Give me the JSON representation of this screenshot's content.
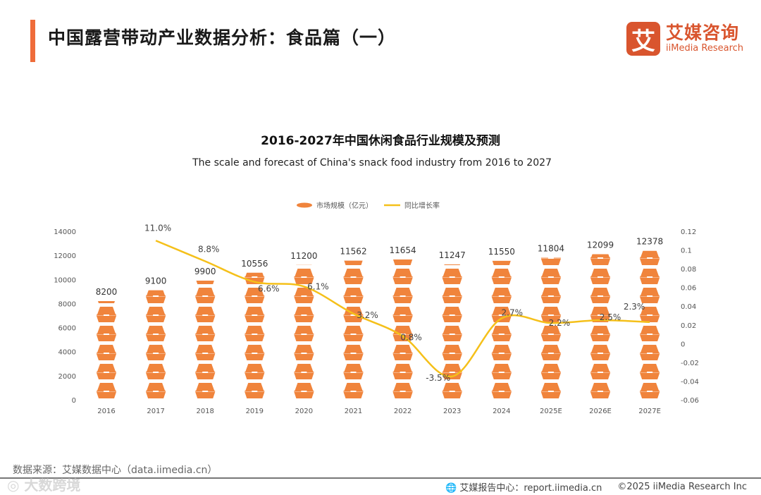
{
  "header": {
    "title": "中国露营带动产业数据分析：食品篇（一）"
  },
  "logo": {
    "mark": "艾",
    "cn": "艾媒咨询",
    "en": "iiMedia Research"
  },
  "footer": {
    "source": "数据来源：艾媒数据中心（data.iimedia.cn）",
    "report_center": "艾媒报告中心：report.iimedia.cn",
    "copyright": "©2025  iiMedia Research  Inc",
    "watermark": "大数跨境"
  },
  "colors": {
    "bar": "#f0843c",
    "line": "#f5c01a",
    "accent": "#ef6c3a"
  },
  "chart_data": {
    "type": "bar",
    "title": "2016-2027年中国休闲食品行业规模及预测",
    "subtitle": "The scale and forecast of China's snack food industry from 2016 to 2027",
    "categories": [
      "2016",
      "2017",
      "2018",
      "2019",
      "2020",
      "2021",
      "2022",
      "2023",
      "2024",
      "2025E",
      "2026E",
      "2027E"
    ],
    "series": [
      {
        "name": "市场规模（亿元）",
        "type": "bar",
        "axis": "left",
        "values": [
          8200,
          9100,
          9900,
          10556,
          11200,
          11562,
          11654,
          11247,
          11550,
          11804,
          12099,
          12378
        ],
        "labels": [
          "8200",
          "9100",
          "9900",
          "10556",
          "11200",
          "11562",
          "11654",
          "11247",
          "11550",
          "11804",
          "12099",
          "12378"
        ]
      },
      {
        "name": "同比增长率",
        "type": "line",
        "axis": "right",
        "values": [
          null,
          0.11,
          0.088,
          0.066,
          0.061,
          0.032,
          0.008,
          -0.035,
          0.027,
          0.022,
          0.025,
          0.023
        ],
        "labels": [
          "",
          "11.0%",
          "8.8%",
          "6.6%",
          "6.1%",
          "3.2%",
          "0.8%",
          "-3.5%",
          "2.7%",
          "2.2%",
          "2.5%",
          "2.3%"
        ]
      }
    ],
    "yleft": {
      "range": [
        0,
        14000
      ],
      "ticks": [
        "0",
        "2000",
        "4000",
        "6000",
        "8000",
        "10000",
        "12000",
        "14000"
      ]
    },
    "yright": {
      "range": [
        -0.06,
        0.12
      ],
      "ticks": [
        "-0.06",
        "-0.04",
        "-0.02",
        "0",
        "0.02",
        "0.04",
        "0.06",
        "0.08",
        "0.1",
        "0.12"
      ]
    },
    "legend": "top-center",
    "grid": false
  }
}
